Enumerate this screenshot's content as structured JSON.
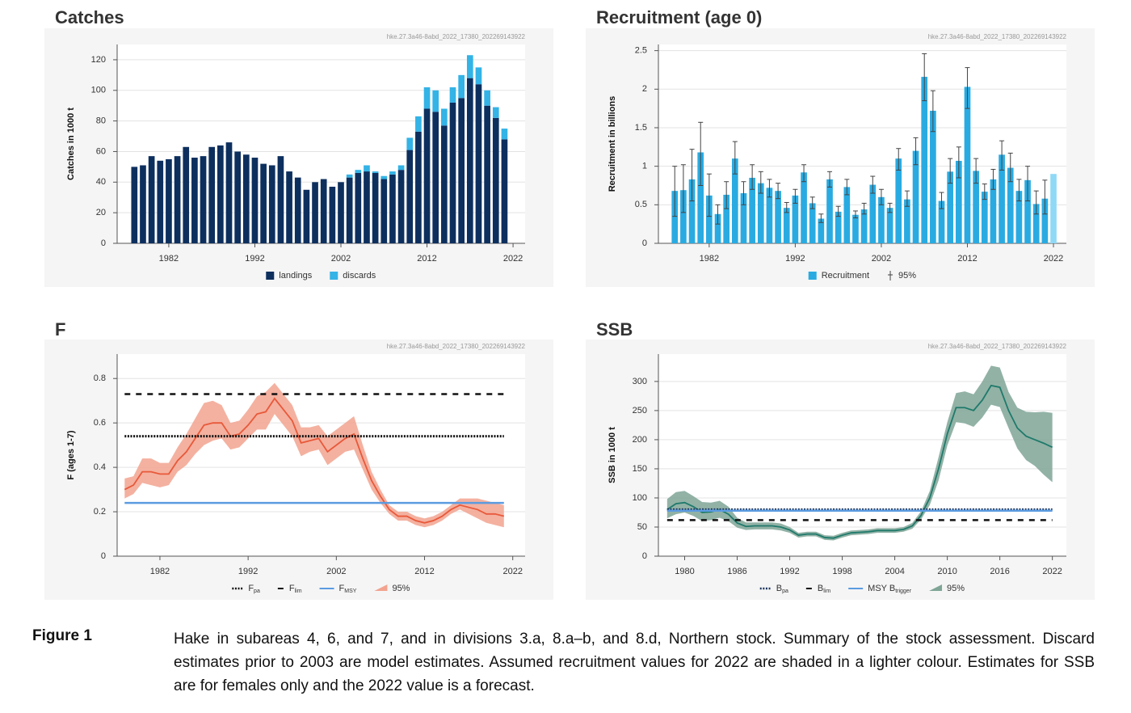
{
  "chart_data": [
    {
      "type": "bar",
      "title": "Catches",
      "title_color": "#16325c",
      "watermark": "hke.27.3a46-8abd_2022_17380_202269143922",
      "ylabel": "Catches in 1000 t",
      "stacked": true,
      "x": [
        1978,
        1979,
        1980,
        1981,
        1982,
        1983,
        1984,
        1985,
        1986,
        1987,
        1988,
        1989,
        1990,
        1991,
        1992,
        1993,
        1994,
        1995,
        1996,
        1997,
        1998,
        1999,
        2000,
        2001,
        2002,
        2003,
        2004,
        2005,
        2006,
        2007,
        2008,
        2009,
        2010,
        2011,
        2012,
        2013,
        2014,
        2015,
        2016,
        2017,
        2018,
        2019,
        2020,
        2021
      ],
      "series": [
        {
          "name": "landings",
          "color": "#0d2f5e",
          "values": [
            50,
            51,
            57,
            54,
            55,
            57,
            63,
            56,
            57,
            63,
            64,
            66,
            60,
            58,
            56,
            52,
            51,
            57,
            47,
            43,
            35,
            40,
            42,
            37,
            40,
            43,
            46,
            47,
            46,
            42,
            45,
            48,
            61,
            73,
            88,
            86,
            77,
            92,
            95,
            108,
            104,
            90,
            82,
            68
          ]
        },
        {
          "name": "discards",
          "color": "#33b3e6",
          "values": [
            0,
            0,
            0,
            0,
            0,
            0,
            0,
            0,
            0,
            0,
            0,
            0,
            0,
            0,
            0,
            0,
            0,
            0,
            0,
            0,
            0,
            0,
            0,
            0,
            0,
            2,
            2,
            4,
            1,
            2,
            2,
            3,
            8,
            10,
            14,
            14,
            11,
            10,
            15,
            15,
            11,
            10,
            7,
            7
          ]
        }
      ],
      "xlim": [
        1976,
        2023.4
      ],
      "xticks": [
        1982,
        1992,
        2002,
        2012,
        2022
      ],
      "ylim": [
        0,
        130
      ],
      "yticks": [
        0,
        20,
        40,
        60,
        80,
        100,
        120
      ],
      "grid": true
    },
    {
      "type": "bar",
      "title": "Recruitment (age 0)",
      "title_color": "#29abe2",
      "watermark": "hke.27.3a46-8abd_2022_17380_202269143922",
      "ylabel": "Recruitment in billions",
      "x": [
        1978,
        1979,
        1980,
        1981,
        1982,
        1983,
        1984,
        1985,
        1986,
        1987,
        1988,
        1989,
        1990,
        1991,
        1992,
        1993,
        1994,
        1995,
        1996,
        1997,
        1998,
        1999,
        2000,
        2001,
        2002,
        2003,
        2004,
        2005,
        2006,
        2007,
        2008,
        2009,
        2010,
        2011,
        2012,
        2013,
        2014,
        2015,
        2016,
        2017,
        2018,
        2019,
        2020,
        2021,
        2022
      ],
      "series": [
        {
          "name": "Recruitment",
          "color": "#29abe2",
          "ci_label": "95%",
          "colors": [
            "#29abe2",
            "#29abe2",
            "#29abe2",
            "#29abe2",
            "#29abe2",
            "#29abe2",
            "#29abe2",
            "#29abe2",
            "#29abe2",
            "#29abe2",
            "#29abe2",
            "#29abe2",
            "#29abe2",
            "#29abe2",
            "#29abe2",
            "#29abe2",
            "#29abe2",
            "#29abe2",
            "#29abe2",
            "#29abe2",
            "#29abe2",
            "#29abe2",
            "#29abe2",
            "#29abe2",
            "#29abe2",
            "#29abe2",
            "#29abe2",
            "#29abe2",
            "#29abe2",
            "#29abe2",
            "#29abe2",
            "#29abe2",
            "#29abe2",
            "#29abe2",
            "#29abe2",
            "#29abe2",
            "#29abe2",
            "#29abe2",
            "#29abe2",
            "#29abe2",
            "#29abe2",
            "#29abe2",
            "#29abe2",
            "#29abe2",
            "#8fd9f7"
          ],
          "values": [
            0.68,
            0.69,
            0.83,
            1.18,
            0.62,
            0.38,
            0.63,
            1.1,
            0.65,
            0.85,
            0.78,
            0.72,
            0.68,
            0.46,
            0.62,
            0.92,
            0.52,
            0.32,
            0.83,
            0.41,
            0.73,
            0.37,
            0.44,
            0.76,
            0.6,
            0.46,
            1.1,
            0.57,
            1.2,
            2.16,
            1.72,
            0.55,
            0.93,
            1.07,
            2.03,
            0.94,
            0.67,
            0.83,
            1.15,
            0.98,
            0.68,
            0.82,
            0.51,
            0.58,
            0.9
          ],
          "low": [
            0.35,
            0.4,
            0.55,
            0.75,
            0.35,
            0.25,
            0.45,
            0.9,
            0.5,
            0.7,
            0.65,
            0.6,
            0.58,
            0.4,
            0.52,
            0.8,
            0.45,
            0.27,
            0.73,
            0.35,
            0.63,
            0.33,
            0.38,
            0.65,
            0.5,
            0.4,
            0.95,
            0.48,
            1.02,
            1.85,
            1.45,
            0.45,
            0.78,
            0.85,
            1.75,
            0.78,
            0.57,
            0.7,
            0.95,
            0.8,
            0.55,
            0.55,
            0.38,
            0.38,
            null
          ],
          "high": [
            1.0,
            1.02,
            1.22,
            1.57,
            0.9,
            0.5,
            0.8,
            1.32,
            0.8,
            1.02,
            0.93,
            0.83,
            0.78,
            0.53,
            0.7,
            1.02,
            0.6,
            0.38,
            0.93,
            0.48,
            0.83,
            0.42,
            0.52,
            0.87,
            0.7,
            0.52,
            1.23,
            0.68,
            1.37,
            2.46,
            1.98,
            0.66,
            1.1,
            1.25,
            2.28,
            1.1,
            0.77,
            0.96,
            1.33,
            1.17,
            0.83,
            1.0,
            0.68,
            0.82,
            null
          ]
        }
      ],
      "xlim": [
        1976.1,
        2023.5
      ],
      "xticks": [
        1982,
        1992,
        2002,
        2012,
        2022
      ],
      "ylim": [
        0,
        2.58
      ],
      "yticks": [
        0,
        0.5,
        1,
        1.5,
        2,
        2.5
      ],
      "grid": true
    },
    {
      "type": "line",
      "title": "F",
      "title_color": "#e8593a",
      "watermark": "hke.27.3a46-8abd_2022_17380_202269143922",
      "ylabel": "F (ages 1-7)",
      "band_label": "95%",
      "x": [
        1978,
        1979,
        1980,
        1981,
        1982,
        1983,
        1984,
        1985,
        1986,
        1987,
        1988,
        1989,
        1990,
        1991,
        1992,
        1993,
        1994,
        1995,
        1996,
        1997,
        1998,
        1999,
        2000,
        2001,
        2002,
        2003,
        2004,
        2005,
        2006,
        2007,
        2008,
        2009,
        2010,
        2011,
        2012,
        2013,
        2014,
        2015,
        2016,
        2017,
        2018,
        2019,
        2020,
        2021
      ],
      "series": [
        {
          "color": "#e8593a",
          "band_color": "#f2a38f",
          "values": [
            0.3,
            0.32,
            0.38,
            0.38,
            0.37,
            0.37,
            0.43,
            0.47,
            0.53,
            0.59,
            0.6,
            0.6,
            0.54,
            0.55,
            0.59,
            0.64,
            0.65,
            0.71,
            0.66,
            0.61,
            0.51,
            0.52,
            0.53,
            0.47,
            0.5,
            0.53,
            0.55,
            0.44,
            0.34,
            0.27,
            0.21,
            0.18,
            0.18,
            0.16,
            0.15,
            0.16,
            0.18,
            0.21,
            0.23,
            0.22,
            0.21,
            0.19,
            0.19,
            0.18
          ],
          "high": [
            0.35,
            0.36,
            0.44,
            0.44,
            0.42,
            0.42,
            0.49,
            0.55,
            0.62,
            0.69,
            0.7,
            0.68,
            0.6,
            0.61,
            0.66,
            0.72,
            0.74,
            0.78,
            0.73,
            0.68,
            0.58,
            0.58,
            0.59,
            0.54,
            0.57,
            0.6,
            0.63,
            0.5,
            0.38,
            0.3,
            0.23,
            0.2,
            0.2,
            0.18,
            0.17,
            0.18,
            0.2,
            0.23,
            0.26,
            0.26,
            0.26,
            0.25,
            0.24,
            0.23
          ],
          "low": [
            0.26,
            0.28,
            0.33,
            0.32,
            0.31,
            0.32,
            0.38,
            0.41,
            0.46,
            0.5,
            0.52,
            0.53,
            0.48,
            0.49,
            0.53,
            0.57,
            0.57,
            0.64,
            0.59,
            0.54,
            0.45,
            0.47,
            0.48,
            0.41,
            0.44,
            0.47,
            0.48,
            0.39,
            0.3,
            0.24,
            0.19,
            0.16,
            0.16,
            0.14,
            0.13,
            0.14,
            0.16,
            0.19,
            0.21,
            0.19,
            0.17,
            0.15,
            0.14,
            0.13
          ]
        }
      ],
      "refs": [
        {
          "name": "F",
          "sub": "pa",
          "value": 0.54,
          "style": "dotted",
          "color": "#111111"
        },
        {
          "name": "F",
          "sub": "lim",
          "value": 0.73,
          "style": "dashed",
          "color": "#111111"
        },
        {
          "name": "F",
          "sub": "MSY",
          "value": 0.24,
          "style": "solid",
          "color": "#5b9be0"
        }
      ],
      "xlim": [
        1977.15,
        2023.4
      ],
      "xticks": [
        1982,
        1992,
        2002,
        2012,
        2022
      ],
      "ylim": [
        0,
        0.91
      ],
      "yticks": [
        0,
        0.2,
        0.4,
        0.6,
        0.8
      ],
      "grid": true
    },
    {
      "type": "line",
      "title": "SSB",
      "title_color": "#1f7a6b",
      "watermark": "hke.27.3a46-8abd_2022_17380_202269143922",
      "ylabel": "SSB in 1000 t",
      "band_label": "95%",
      "x": [
        1978,
        1979,
        1980,
        1981,
        1982,
        1983,
        1984,
        1985,
        1986,
        1987,
        1988,
        1989,
        1990,
        1991,
        1992,
        1993,
        1994,
        1995,
        1996,
        1997,
        1998,
        1999,
        2000,
        2001,
        2002,
        2003,
        2004,
        2005,
        2006,
        2007,
        2008,
        2009,
        2010,
        2011,
        2012,
        2013,
        2014,
        2015,
        2016,
        2017,
        2018,
        2019,
        2020,
        2021,
        2022
      ],
      "series": [
        {
          "color": "#1f7a6b",
          "band_color": "#7fa596",
          "values": [
            80,
            90,
            92,
            85,
            75,
            76,
            80,
            72,
            57,
            51,
            52,
            52,
            52,
            50,
            45,
            36,
            38,
            38,
            32,
            31,
            36,
            40,
            41,
            42,
            44,
            44,
            44,
            46,
            52,
            70,
            100,
            150,
            210,
            255,
            255,
            250,
            268,
            293,
            290,
            250,
            220,
            206,
            200,
            194,
            187
          ],
          "high": [
            98,
            110,
            112,
            103,
            93,
            92,
            95,
            85,
            66,
            58,
            58,
            58,
            58,
            56,
            50,
            40,
            42,
            42,
            36,
            35,
            40,
            44,
            45,
            46,
            48,
            48,
            48,
            50,
            57,
            77,
            112,
            170,
            230,
            280,
            283,
            278,
            300,
            327,
            324,
            282,
            255,
            248,
            247,
            248,
            246
          ],
          "low": [
            65,
            72,
            75,
            69,
            60,
            62,
            66,
            60,
            49,
            45,
            46,
            46,
            46,
            44,
            40,
            32,
            34,
            34,
            28,
            27,
            32,
            36,
            37,
            38,
            40,
            40,
            40,
            42,
            47,
            63,
            88,
            130,
            190,
            230,
            228,
            222,
            238,
            260,
            256,
            220,
            185,
            165,
            155,
            140,
            127
          ]
        }
      ],
      "refs": [
        {
          "name": "B",
          "sub": "pa",
          "value": 80,
          "style": "dotted",
          "color": "#16325c"
        },
        {
          "name": "B",
          "sub": "lim",
          "value": 62,
          "style": "dashed",
          "color": "#111111"
        },
        {
          "name": "MSY B",
          "sub": "trigger",
          "value": 78,
          "style": "solid",
          "color": "#5b9be0"
        }
      ],
      "xlim": [
        1977,
        2023.6
      ],
      "xticks": [
        1980,
        1986,
        1992,
        1998,
        2004,
        2010,
        2016,
        2022
      ],
      "ylim": [
        0,
        347
      ],
      "yticks": [
        0,
        50,
        100,
        150,
        200,
        250,
        300
      ],
      "grid": true
    }
  ],
  "figure": {
    "label": "Figure 1",
    "caption": "Hake in subareas 4, 6, and 7, and in divisions 3.a, 8.a–b, and 8.d, Northern stock. Summary of the stock assessment. Discard estimates prior to 2003 are model estimates. Assumed recruitment values for 2022 are shaded in a lighter colour. Estimates for SSB are for females only and the 2022 value is a forecast."
  }
}
